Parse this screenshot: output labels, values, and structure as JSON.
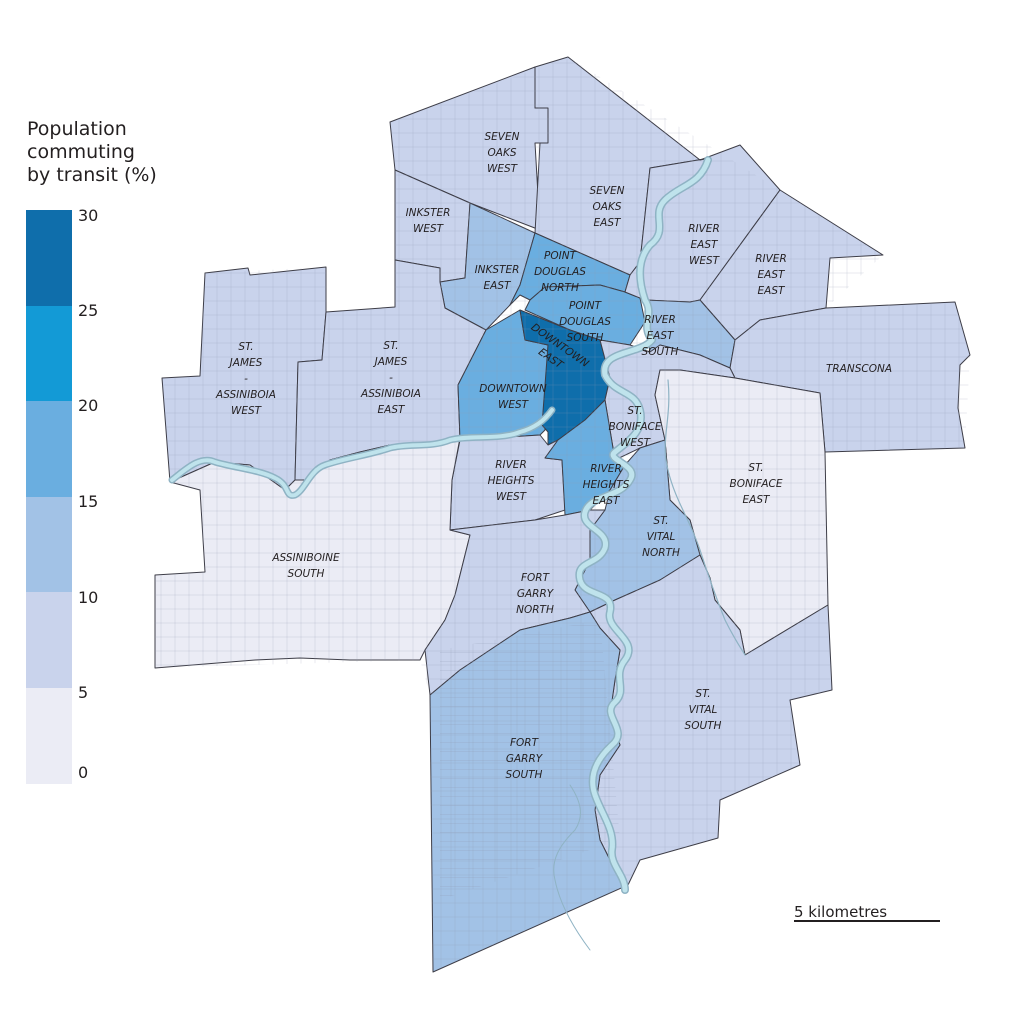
{
  "legend": {
    "title": "Population\ncommuting\nby transit (%)",
    "ticks": [
      "30",
      "25",
      "20",
      "15",
      "10",
      "5",
      "0"
    ],
    "classes": [
      {
        "range": [
          25,
          30
        ],
        "color": "#0f6eab"
      },
      {
        "range": [
          20,
          25
        ],
        "color": "#139ad6"
      },
      {
        "range": [
          15,
          20
        ],
        "color": "#6aaee0"
      },
      {
        "range": [
          10,
          15
        ],
        "color": "#a2c2e6"
      },
      {
        "range": [
          5,
          10
        ],
        "color": "#c9d3ec"
      },
      {
        "range": [
          0,
          5
        ],
        "color": "#ebecf5"
      }
    ]
  },
  "regions": [
    {
      "id": "seven-oaks-west",
      "name": "SEVEN\nOAKS\nWEST",
      "class": 1
    },
    {
      "id": "seven-oaks-east",
      "name": "SEVEN\nOAKS\nEAST",
      "class": 1
    },
    {
      "id": "inkster-west",
      "name": "INKSTER\nWEST",
      "class": 1
    },
    {
      "id": "inkster-east",
      "name": "INKSTER\nEAST",
      "class": 2
    },
    {
      "id": "point-douglas-north",
      "name": "POINT\nDOUGLAS\nNORTH",
      "class": 3
    },
    {
      "id": "point-douglas-south",
      "name": "POINT\nDOUGLAS\nSOUTH",
      "class": 3
    },
    {
      "id": "river-east-west",
      "name": "RIVER\nEAST\nWEST",
      "class": 1
    },
    {
      "id": "river-east-east",
      "name": "RIVER\nEAST\nEAST",
      "class": 1
    },
    {
      "id": "river-east-south",
      "name": "RIVER\nEAST\nSOUTH",
      "class": 2
    },
    {
      "id": "transcona",
      "name": "TRANSCONA",
      "class": 1
    },
    {
      "id": "st-james-assiniboia-west",
      "name": "ST.\nJAMES\n-\nASSINIBOIA\nWEST",
      "class": 1
    },
    {
      "id": "st-james-assiniboia-east",
      "name": "ST.\nJAMES\n-\nASSINIBOIA\nEAST",
      "class": 1
    },
    {
      "id": "downtown-west",
      "name": "DOWNTOWN\nWEST",
      "class": 3
    },
    {
      "id": "downtown-east",
      "name": "DOWNTOWN\nEAST",
      "class": 5
    },
    {
      "id": "st-boniface-west",
      "name": "ST.\nBONIFACE\nWEST",
      "class": 1
    },
    {
      "id": "st-boniface-east",
      "name": "ST.\nBONIFACE\nEAST",
      "class": 0
    },
    {
      "id": "river-heights-west",
      "name": "RIVER\nHEIGHTS\nWEST",
      "class": 1
    },
    {
      "id": "river-heights-east",
      "name": "RIVER\nHEIGHTS\nEAST",
      "class": 3
    },
    {
      "id": "assiniboine-south",
      "name": "ASSINIBOINE\nSOUTH",
      "class": 0
    },
    {
      "id": "st-vital-north",
      "name": "ST.\nVITAL\nNORTH",
      "class": 2
    },
    {
      "id": "fort-garry-north",
      "name": "FORT\nGARRY\nNORTH",
      "class": 1
    },
    {
      "id": "st-vital-south",
      "name": "ST.\nVITAL\nSOUTH",
      "class": 1
    },
    {
      "id": "fort-garry-south",
      "name": "FORT\nGARRY\nSOUTH",
      "class": 2
    }
  ],
  "scale_bar": {
    "label": "5 kilometres"
  }
}
